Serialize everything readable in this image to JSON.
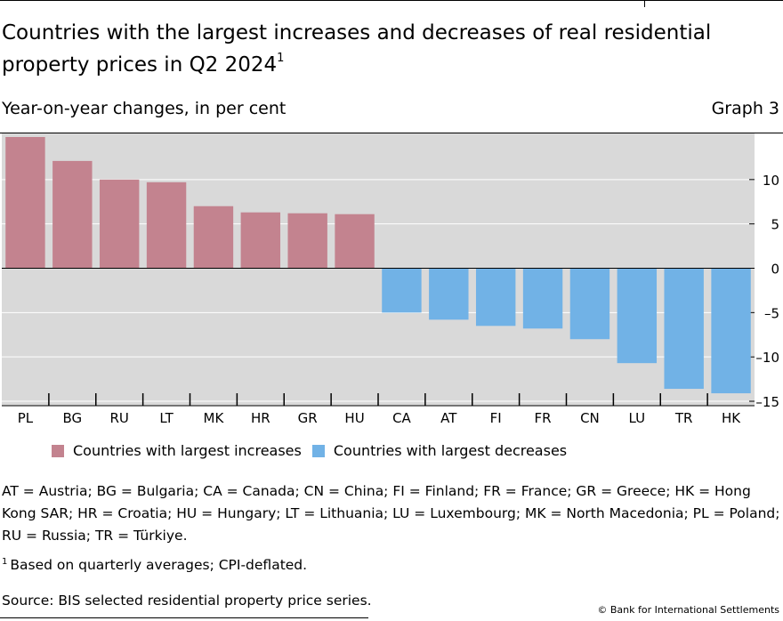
{
  "header": {
    "title": "Countries with the largest increases and decreases of real residential property prices in Q2 2024",
    "title_sup": "1",
    "subtitle": "Year-on-year changes, in per cent",
    "graph_number": "Graph 3"
  },
  "chart_data": {
    "type": "bar",
    "categories": [
      "PL",
      "BG",
      "RU",
      "LT",
      "MK",
      "HR",
      "GR",
      "HU",
      "CA",
      "AT",
      "FI",
      "FR",
      "CN",
      "LU",
      "TR",
      "HK"
    ],
    "series": [
      {
        "name": "Countries with largest increases",
        "values": [
          14.8,
          12.1,
          10.0,
          9.7,
          7.0,
          6.3,
          6.2,
          6.1,
          null,
          null,
          null,
          null,
          null,
          null,
          null,
          null
        ]
      },
      {
        "name": "Countries with largest decreases",
        "values": [
          null,
          null,
          null,
          null,
          null,
          null,
          null,
          null,
          -5.0,
          -5.8,
          -6.5,
          -6.8,
          -8.0,
          -10.7,
          -13.6,
          -14.1
        ]
      }
    ],
    "ylim": [
      -15.5,
      15.2
    ],
    "yticks": [
      {
        "value": 10,
        "label": "10"
      },
      {
        "value": 5,
        "label": "5"
      },
      {
        "value": 0,
        "label": "0"
      },
      {
        "value": -5,
        "label": "–5"
      },
      {
        "value": -10,
        "label": "–10"
      },
      {
        "value": -15,
        "label": "–15"
      }
    ],
    "y_axis_position": "right",
    "grid": true,
    "legend_position": "bottom"
  },
  "colors": {
    "increase": "#c3838f",
    "decrease": "#71b2e6",
    "plot_background": "#d9d9d9",
    "gridline": "#ffffff"
  },
  "legend": {
    "items": [
      {
        "label": "Countries with largest increases"
      },
      {
        "label": "Countries with largest decreases"
      }
    ]
  },
  "notes": {
    "abbreviations": "AT = Austria; BG = Bulgaria; CA = Canada; CN = China; FI = Finland; FR = France; GR = Greece; HK = Hong Kong SAR; HR = Croatia; HU = Hungary; LT = Lithuania; LU = Luxembourg; MK = North Macedonia; PL = Poland; RU = Russia; TR = Türkiye.",
    "footnote_marker": "1",
    "footnote": "Based on quarterly averages; CPI-deflated.",
    "source": "Source: BIS selected residential property price series.",
    "copyright": "© Bank for International Settlements"
  }
}
